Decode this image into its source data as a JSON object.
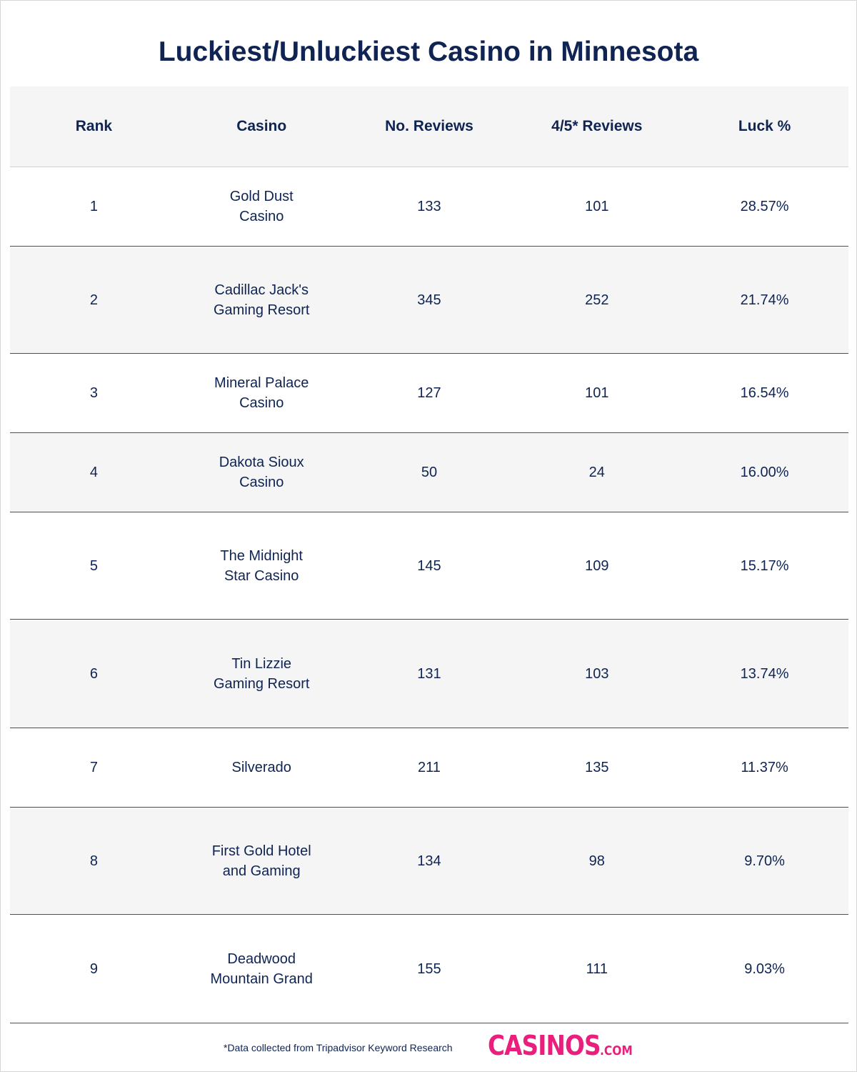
{
  "title": "Luckiest/Unluckiest Casino in Minnesota",
  "columns": [
    "Rank",
    "Casino",
    "No. Reviews",
    "4/5* Reviews",
    "Luck %"
  ],
  "rows": [
    {
      "rank": "1",
      "casino": "Gold Dust Casino",
      "reviews": "133",
      "good_reviews": "101",
      "luck": "28.57%"
    },
    {
      "rank": "2",
      "casino": "Cadillac Jack's Gaming Resort",
      "reviews": "345",
      "good_reviews": "252",
      "luck": "21.74%"
    },
    {
      "rank": "3",
      "casino": "Mineral Palace Casino",
      "reviews": "127",
      "good_reviews": "101",
      "luck": "16.54%"
    },
    {
      "rank": "4",
      "casino": "Dakota Sioux Casino",
      "reviews": "50",
      "good_reviews": "24",
      "luck": "16.00%"
    },
    {
      "rank": "5",
      "casino": "The Midnight Star Casino",
      "reviews": "145",
      "good_reviews": "109",
      "luck": "15.17%"
    },
    {
      "rank": "6",
      "casino": "Tin Lizzie Gaming Resort",
      "reviews": "131",
      "good_reviews": "103",
      "luck": "13.74%"
    },
    {
      "rank": "7",
      "casino": "Silverado",
      "reviews": "211",
      "good_reviews": "135",
      "luck": "11.37%"
    },
    {
      "rank": "8",
      "casino": "First Gold Hotel and Gaming",
      "reviews": "134",
      "good_reviews": "98",
      "luck": "9.70%"
    },
    {
      "rank": "9",
      "casino": "Deadwood Mountain Grand",
      "reviews": "155",
      "good_reviews": "111",
      "luck": "9.03%"
    }
  ],
  "footnote": "*Data collected from Tripadvisor Keyword Research",
  "logo": {
    "main": "CASINOS",
    "suffix": ".COM",
    "color": "#ea1f7d"
  },
  "colors": {
    "text": "#0f2452",
    "stripe": "#f5f5f5",
    "divider": "#4f4f4f"
  },
  "chart_data": {
    "type": "table",
    "title": "Luckiest/Unluckiest Casino in Minnesota",
    "columns": [
      "Rank",
      "Casino",
      "No. Reviews",
      "4/5* Reviews",
      "Luck %"
    ],
    "rows": [
      [
        1,
        "Gold Dust Casino",
        133,
        101,
        "28.57%"
      ],
      [
        2,
        "Cadillac Jack's Gaming Resort",
        345,
        252,
        "21.74%"
      ],
      [
        3,
        "Mineral Palace Casino",
        127,
        101,
        "16.54%"
      ],
      [
        4,
        "Dakota Sioux Casino",
        50,
        24,
        "16.00%"
      ],
      [
        5,
        "The Midnight Star Casino",
        145,
        109,
        "15.17%"
      ],
      [
        6,
        "Tin Lizzie Gaming Resort",
        131,
        103,
        "13.74%"
      ],
      [
        7,
        "Silverado",
        211,
        135,
        "11.37%"
      ],
      [
        8,
        "First Gold Hotel and Gaming",
        134,
        98,
        "9.70%"
      ],
      [
        9,
        "Deadwood Mountain Grand",
        155,
        111,
        "9.03%"
      ]
    ]
  }
}
